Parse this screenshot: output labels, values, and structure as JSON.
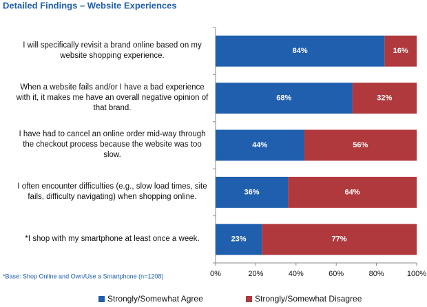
{
  "chart_data": {
    "type": "stacked_barh",
    "title": "Detailed Findings – Website Experiences",
    "footnote": "*Base: Shop Online and Own/Use a Smartphone (n=1208)",
    "categories": [
      "I will specifically revisit a brand online based on my website shopping experience.",
      "When a website fails and/or I have a bad experience with it, it makes me have an overall negative opinion of that brand.",
      "I have had to cancel an online order mid-way through the checkout process because the website was too slow.",
      "I often encounter difficulties (e.g., slow load times, site fails, difficulty navigating) when shopping online.",
      "*I shop with my smartphone at least once a week."
    ],
    "series": [
      {
        "name": "Strongly/Somewhat Agree",
        "color": "#1f5fad",
        "values": [
          84,
          68,
          44,
          36,
          23
        ],
        "value_labels": [
          "84%",
          "68%",
          "44%",
          "36%",
          "23%"
        ]
      },
      {
        "name": "Strongly/Somewhat Disagree",
        "color": "#b0393d",
        "values": [
          16,
          32,
          56,
          64,
          77
        ],
        "value_labels": [
          "16%",
          "32%",
          "56%",
          "64%",
          "77%"
        ]
      }
    ],
    "xlim": [
      0,
      100
    ],
    "xticks": [
      {
        "value": 0,
        "label": "0%"
      },
      {
        "value": 20,
        "label": "20%"
      },
      {
        "value": 40,
        "label": "40%"
      },
      {
        "value": 60,
        "label": "60%"
      },
      {
        "value": 80,
        "label": "80%"
      },
      {
        "value": 100,
        "label": "100%"
      }
    ],
    "legend": "bottom"
  }
}
